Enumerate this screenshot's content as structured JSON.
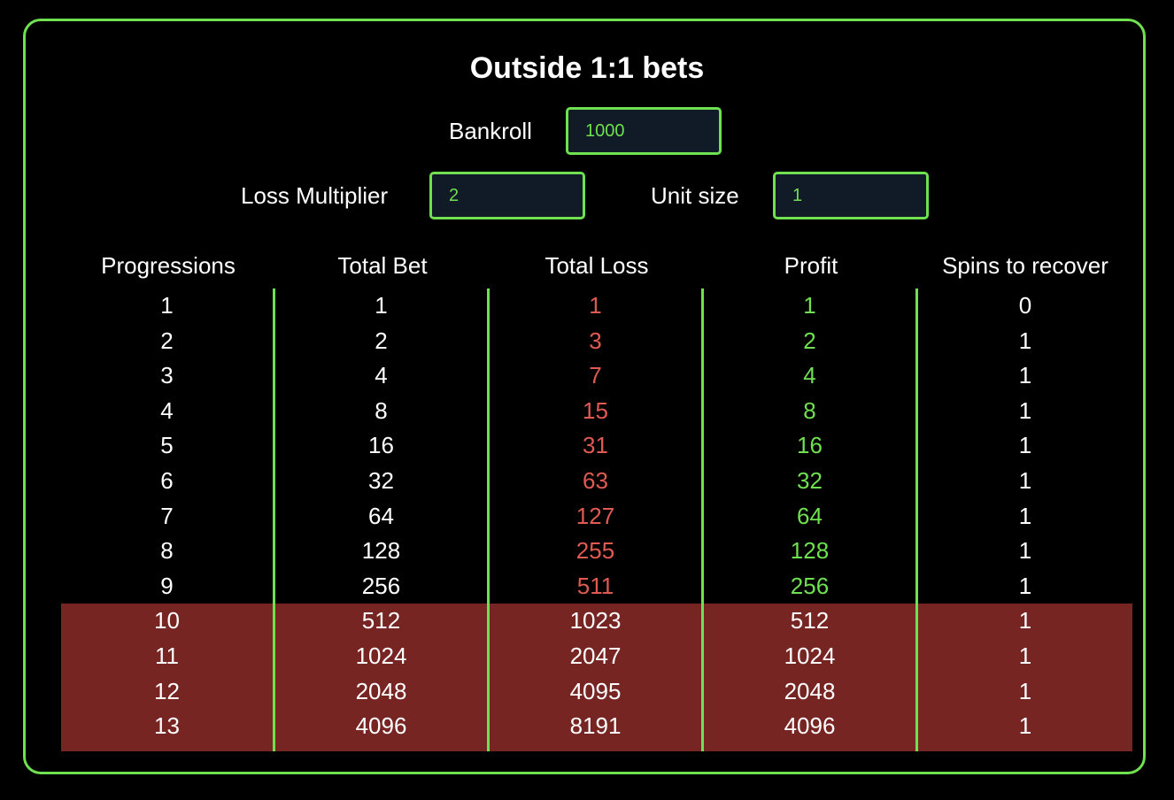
{
  "title": "Outside 1:1 bets",
  "bankroll": {
    "label": "Bankroll",
    "value": "1000"
  },
  "loss_multiplier": {
    "label": "Loss Multiplier",
    "value": "2"
  },
  "unit_size": {
    "label": "Unit size",
    "value": "1"
  },
  "colors": {
    "accent": "#6fe04f",
    "loss": "#e05a52",
    "danger_row_bg": "#772522",
    "input_bg": "#111a27"
  },
  "table": {
    "headers": [
      "Progressions",
      "Total Bet",
      "Total Loss",
      "Profit",
      "Spins to recover"
    ],
    "rows": [
      {
        "progression": "1",
        "total_bet": "1",
        "total_loss": "1",
        "profit": "1",
        "spins": "0",
        "over_bankroll": false
      },
      {
        "progression": "2",
        "total_bet": "2",
        "total_loss": "3",
        "profit": "2",
        "spins": "1",
        "over_bankroll": false
      },
      {
        "progression": "3",
        "total_bet": "4",
        "total_loss": "7",
        "profit": "4",
        "spins": "1",
        "over_bankroll": false
      },
      {
        "progression": "4",
        "total_bet": "8",
        "total_loss": "15",
        "profit": "8",
        "spins": "1",
        "over_bankroll": false
      },
      {
        "progression": "5",
        "total_bet": "16",
        "total_loss": "31",
        "profit": "16",
        "spins": "1",
        "over_bankroll": false
      },
      {
        "progression": "6",
        "total_bet": "32",
        "total_loss": "63",
        "profit": "32",
        "spins": "1",
        "over_bankroll": false
      },
      {
        "progression": "7",
        "total_bet": "64",
        "total_loss": "127",
        "profit": "64",
        "spins": "1",
        "over_bankroll": false
      },
      {
        "progression": "8",
        "total_bet": "128",
        "total_loss": "255",
        "profit": "128",
        "spins": "1",
        "over_bankroll": false
      },
      {
        "progression": "9",
        "total_bet": "256",
        "total_loss": "511",
        "profit": "256",
        "spins": "1",
        "over_bankroll": false
      },
      {
        "progression": "10",
        "total_bet": "512",
        "total_loss": "1023",
        "profit": "512",
        "spins": "1",
        "over_bankroll": true
      },
      {
        "progression": "11",
        "total_bet": "1024",
        "total_loss": "2047",
        "profit": "1024",
        "spins": "1",
        "over_bankroll": true
      },
      {
        "progression": "12",
        "total_bet": "2048",
        "total_loss": "4095",
        "profit": "2048",
        "spins": "1",
        "over_bankroll": true
      },
      {
        "progression": "13",
        "total_bet": "4096",
        "total_loss": "8191",
        "profit": "4096",
        "spins": "1",
        "over_bankroll": true
      }
    ]
  }
}
